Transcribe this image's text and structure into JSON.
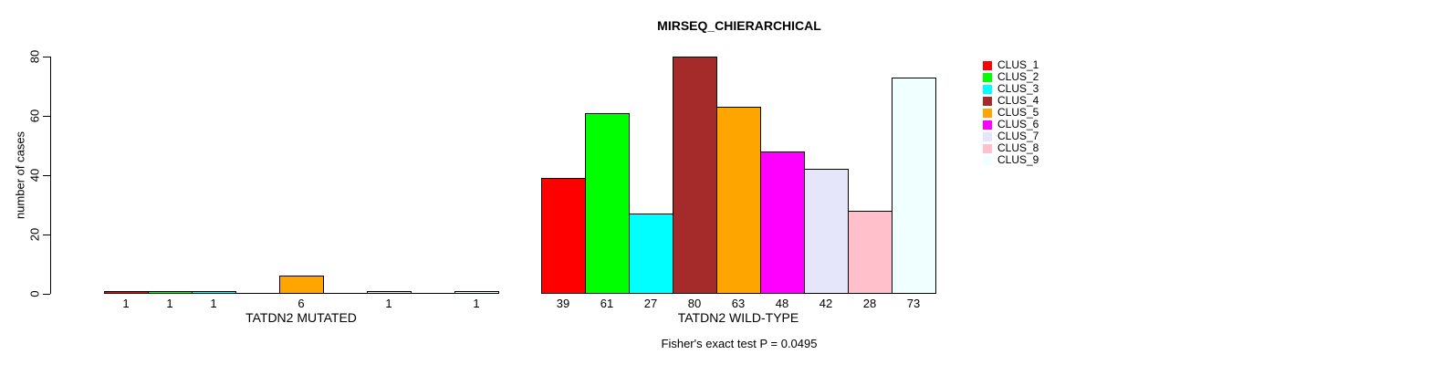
{
  "page": {
    "background_color": "#FFFFFF",
    "text_color": "#000000"
  },
  "chart_data": {
    "type": "bar",
    "title": "MIRSEQ_CHIERARCHICAL",
    "ylabel": "number of cases",
    "xlabel": "",
    "ylim": [
      0,
      80
    ],
    "yticks": [
      0,
      20,
      40,
      60,
      80
    ],
    "grid": false,
    "legend_position": "right",
    "bar_border_color": "#000000",
    "value_labels_shown": true,
    "zero_value_labels_hidden": true,
    "zero_bars_drawn_as_baseline_line": true,
    "categories": [
      "TATDN2 MUTATED",
      "TATDN2 WILD-TYPE"
    ],
    "series": [
      {
        "name": "CLUS_1",
        "color": "#FF0000",
        "values": [
          1,
          39
        ]
      },
      {
        "name": "CLUS_2",
        "color": "#00FF00",
        "values": [
          1,
          61
        ]
      },
      {
        "name": "CLUS_3",
        "color": "#00FFFF",
        "values": [
          1,
          27
        ]
      },
      {
        "name": "CLUS_4",
        "color": "#A52A2A",
        "values": [
          0,
          80
        ]
      },
      {
        "name": "CLUS_5",
        "color": "#FFA500",
        "values": [
          6,
          63
        ]
      },
      {
        "name": "CLUS_6",
        "color": "#FF00FF",
        "values": [
          0,
          48
        ]
      },
      {
        "name": "CLUS_7",
        "color": "#E6E6FA",
        "values": [
          1,
          42
        ]
      },
      {
        "name": "CLUS_8",
        "color": "#FFC0CB",
        "values": [
          0,
          28
        ]
      },
      {
        "name": "CLUS_9",
        "color": "#F0FFFF",
        "values": [
          1,
          73
        ]
      }
    ],
    "annotation": "Fisher's exact test P = 0.0495"
  }
}
